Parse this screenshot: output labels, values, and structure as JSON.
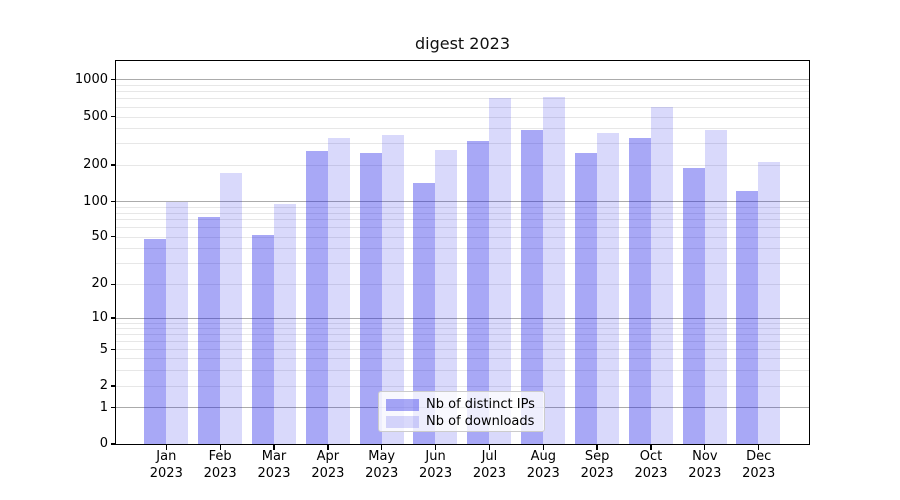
{
  "title": "digest 2023",
  "chart_data": {
    "type": "bar",
    "title": "digest 2023",
    "x_year": "2023",
    "categories": [
      "Jan",
      "Feb",
      "Mar",
      "Apr",
      "May",
      "Jun",
      "Jul",
      "Aug",
      "Sep",
      "Oct",
      "Nov",
      "Dec"
    ],
    "y_ticks": [
      0,
      1,
      2,
      5,
      10,
      20,
      50,
      100,
      200,
      500,
      1000
    ],
    "y_scale": "asinh-log-like",
    "grid": true,
    "legend_position": "bottom-center",
    "series": [
      {
        "name": "Nb of distinct IPs",
        "color": "rgba(20,20,230,0.37)",
        "values": [
          48,
          74,
          52,
          258,
          250,
          141,
          316,
          390,
          250,
          330,
          190,
          122
        ]
      },
      {
        "name": "Nb of downloads",
        "color": "rgba(20,20,230,0.16)",
        "values": [
          98,
          170,
          94,
          332,
          350,
          266,
          700,
          718,
          368,
          600,
          385,
          212
        ]
      }
    ],
    "colors": {
      "grid_major": "#ababab",
      "grid_minor": "#e7e7e7",
      "axis": "#000000"
    }
  }
}
